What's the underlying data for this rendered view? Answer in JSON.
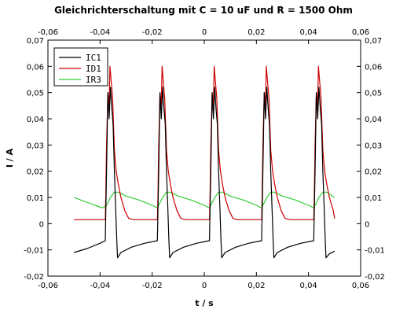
{
  "chart_data": {
    "type": "line",
    "title": "Gleichrichterschaltung mit C = 10 uF und R = 1500 Ohm",
    "xlabel": "t / s",
    "ylabel": "I / A",
    "xlim": [
      -0.06,
      0.06
    ],
    "ylim": [
      -0.02,
      0.07
    ],
    "xticks": [
      -0.06,
      -0.04,
      -0.02,
      0,
      0.02,
      0.04,
      0.06
    ],
    "xtick_labels": [
      "-0,06",
      "-0,04",
      "-0,02",
      "0",
      "0,02",
      "0,04",
      "0,06"
    ],
    "yticks": [
      -0.02,
      -0.01,
      0,
      0.01,
      0.02,
      0.03,
      0.04,
      0.05,
      0.06,
      0.07
    ],
    "ytick_labels": [
      "-0,02",
      "-0,01",
      "0",
      "0,01",
      "0,02",
      "0,03",
      "0,04",
      "0,05",
      "0,06",
      "0,07"
    ],
    "grid": false,
    "legend_position": "top-left",
    "series": [
      {
        "name": "IC1",
        "color": "#000000",
        "points": [
          [
            -0.05,
            -0.011
          ],
          [
            -0.045,
            -0.0095
          ],
          [
            -0.04,
            -0.0075
          ],
          [
            -0.038,
            -0.0065
          ],
          [
            -0.0375,
            0.02
          ],
          [
            -0.037,
            0.05
          ],
          [
            -0.0365,
            0.04
          ],
          [
            -0.036,
            0.052
          ],
          [
            -0.0355,
            0.044
          ],
          [
            -0.035,
            0.038
          ],
          [
            -0.0345,
            0.02
          ],
          [
            -0.034,
            0.006
          ],
          [
            -0.0336,
            -0.006
          ],
          [
            -0.0333,
            -0.013
          ],
          [
            -0.032,
            -0.011
          ],
          [
            -0.028,
            -0.009
          ],
          [
            -0.023,
            -0.0075
          ],
          [
            -0.018,
            -0.0065
          ],
          [
            -0.0175,
            0.02
          ],
          [
            -0.017,
            0.05
          ],
          [
            -0.0165,
            0.04
          ],
          [
            -0.016,
            0.052
          ],
          [
            -0.0155,
            0.044
          ],
          [
            -0.015,
            0.038
          ],
          [
            -0.0145,
            0.02
          ],
          [
            -0.014,
            0.006
          ],
          [
            -0.0136,
            -0.006
          ],
          [
            -0.0133,
            -0.013
          ],
          [
            -0.012,
            -0.011
          ],
          [
            -0.008,
            -0.009
          ],
          [
            -0.003,
            -0.0075
          ],
          [
            0.002,
            -0.0065
          ],
          [
            0.0025,
            0.02
          ],
          [
            0.003,
            0.05
          ],
          [
            0.0035,
            0.04
          ],
          [
            0.004,
            0.052
          ],
          [
            0.0045,
            0.044
          ],
          [
            0.005,
            0.038
          ],
          [
            0.0055,
            0.02
          ],
          [
            0.006,
            0.006
          ],
          [
            0.0064,
            -0.006
          ],
          [
            0.0067,
            -0.013
          ],
          [
            0.008,
            -0.011
          ],
          [
            0.012,
            -0.009
          ],
          [
            0.017,
            -0.0075
          ],
          [
            0.022,
            -0.0065
          ],
          [
            0.0225,
            0.02
          ],
          [
            0.023,
            0.05
          ],
          [
            0.0235,
            0.04
          ],
          [
            0.024,
            0.052
          ],
          [
            0.0245,
            0.044
          ],
          [
            0.025,
            0.038
          ],
          [
            0.0255,
            0.02
          ],
          [
            0.026,
            0.006
          ],
          [
            0.0264,
            -0.006
          ],
          [
            0.0267,
            -0.013
          ],
          [
            0.028,
            -0.011
          ],
          [
            0.032,
            -0.009
          ],
          [
            0.037,
            -0.0075
          ],
          [
            0.042,
            -0.0065
          ],
          [
            0.0425,
            0.02
          ],
          [
            0.043,
            0.05
          ],
          [
            0.0435,
            0.04
          ],
          [
            0.044,
            0.052
          ],
          [
            0.0445,
            0.044
          ],
          [
            0.045,
            0.038
          ],
          [
            0.0455,
            0.02
          ],
          [
            0.046,
            0.006
          ],
          [
            0.0464,
            -0.006
          ],
          [
            0.0467,
            -0.013
          ],
          [
            0.048,
            -0.0115
          ],
          [
            0.05,
            -0.0105
          ]
        ]
      },
      {
        "name": "ID1",
        "color": "#cc0000",
        "points": [
          [
            -0.05,
            0.0015
          ],
          [
            -0.038,
            0.0015
          ],
          [
            -0.0378,
            0.01
          ],
          [
            -0.0375,
            0.03
          ],
          [
            -0.037,
            0.05
          ],
          [
            -0.0365,
            0.045
          ],
          [
            -0.0362,
            0.06
          ],
          [
            -0.0358,
            0.055
          ],
          [
            -0.0352,
            0.048
          ],
          [
            -0.0345,
            0.028
          ],
          [
            -0.0338,
            0.02
          ],
          [
            -0.033,
            0.015
          ],
          [
            -0.032,
            0.01
          ],
          [
            -0.0305,
            0.005
          ],
          [
            -0.029,
            0.002
          ],
          [
            -0.027,
            0.0015
          ],
          [
            -0.018,
            0.0015
          ],
          [
            -0.0178,
            0.01
          ],
          [
            -0.0175,
            0.03
          ],
          [
            -0.017,
            0.05
          ],
          [
            -0.0165,
            0.045
          ],
          [
            -0.0162,
            0.06
          ],
          [
            -0.0158,
            0.055
          ],
          [
            -0.0152,
            0.048
          ],
          [
            -0.0145,
            0.028
          ],
          [
            -0.0138,
            0.02
          ],
          [
            -0.013,
            0.015
          ],
          [
            -0.012,
            0.01
          ],
          [
            -0.0105,
            0.005
          ],
          [
            -0.009,
            0.002
          ],
          [
            -0.007,
            0.0015
          ],
          [
            0.002,
            0.0015
          ],
          [
            0.0022,
            0.01
          ],
          [
            0.0025,
            0.03
          ],
          [
            0.003,
            0.05
          ],
          [
            0.0035,
            0.045
          ],
          [
            0.0038,
            0.06
          ],
          [
            0.0042,
            0.055
          ],
          [
            0.0048,
            0.048
          ],
          [
            0.0055,
            0.028
          ],
          [
            0.0062,
            0.02
          ],
          [
            0.007,
            0.015
          ],
          [
            0.008,
            0.01
          ],
          [
            0.0095,
            0.005
          ],
          [
            0.011,
            0.002
          ],
          [
            0.013,
            0.0015
          ],
          [
            0.022,
            0.0015
          ],
          [
            0.0222,
            0.01
          ],
          [
            0.0225,
            0.03
          ],
          [
            0.023,
            0.05
          ],
          [
            0.0235,
            0.045
          ],
          [
            0.0238,
            0.06
          ],
          [
            0.0242,
            0.055
          ],
          [
            0.0248,
            0.048
          ],
          [
            0.0255,
            0.028
          ],
          [
            0.0262,
            0.02
          ],
          [
            0.027,
            0.015
          ],
          [
            0.028,
            0.01
          ],
          [
            0.0295,
            0.005
          ],
          [
            0.031,
            0.002
          ],
          [
            0.033,
            0.0015
          ],
          [
            0.042,
            0.0015
          ],
          [
            0.0422,
            0.01
          ],
          [
            0.0425,
            0.03
          ],
          [
            0.043,
            0.05
          ],
          [
            0.0435,
            0.045
          ],
          [
            0.0438,
            0.06
          ],
          [
            0.0442,
            0.055
          ],
          [
            0.0448,
            0.048
          ],
          [
            0.0455,
            0.028
          ],
          [
            0.0462,
            0.02
          ],
          [
            0.047,
            0.015
          ],
          [
            0.048,
            0.01
          ],
          [
            0.0495,
            0.005
          ],
          [
            0.05,
            0.002
          ]
        ]
      },
      {
        "name": "IR3",
        "color": "#33cc33",
        "points": [
          [
            -0.05,
            0.01
          ],
          [
            -0.046,
            0.0085
          ],
          [
            -0.042,
            0.007
          ],
          [
            -0.039,
            0.006
          ],
          [
            -0.0375,
            0.007
          ],
          [
            -0.036,
            0.01
          ],
          [
            -0.0345,
            0.012
          ],
          [
            -0.033,
            0.012
          ],
          [
            -0.03,
            0.0105
          ],
          [
            -0.025,
            0.009
          ],
          [
            -0.02,
            0.007
          ],
          [
            -0.018,
            0.006
          ],
          [
            -0.0175,
            0.007
          ],
          [
            -0.016,
            0.01
          ],
          [
            -0.0145,
            0.012
          ],
          [
            -0.013,
            0.012
          ],
          [
            -0.01,
            0.0105
          ],
          [
            -0.005,
            0.009
          ],
          [
            0.0,
            0.007
          ],
          [
            0.002,
            0.006
          ],
          [
            0.0025,
            0.007
          ],
          [
            0.004,
            0.01
          ],
          [
            0.0055,
            0.012
          ],
          [
            0.007,
            0.012
          ],
          [
            0.01,
            0.0105
          ],
          [
            0.015,
            0.009
          ],
          [
            0.02,
            0.007
          ],
          [
            0.022,
            0.006
          ],
          [
            0.0225,
            0.007
          ],
          [
            0.024,
            0.01
          ],
          [
            0.0255,
            0.012
          ],
          [
            0.027,
            0.012
          ],
          [
            0.03,
            0.0105
          ],
          [
            0.035,
            0.009
          ],
          [
            0.04,
            0.007
          ],
          [
            0.042,
            0.006
          ],
          [
            0.0425,
            0.007
          ],
          [
            0.044,
            0.01
          ],
          [
            0.0455,
            0.012
          ],
          [
            0.047,
            0.012
          ],
          [
            0.05,
            0.01
          ]
        ]
      }
    ]
  }
}
